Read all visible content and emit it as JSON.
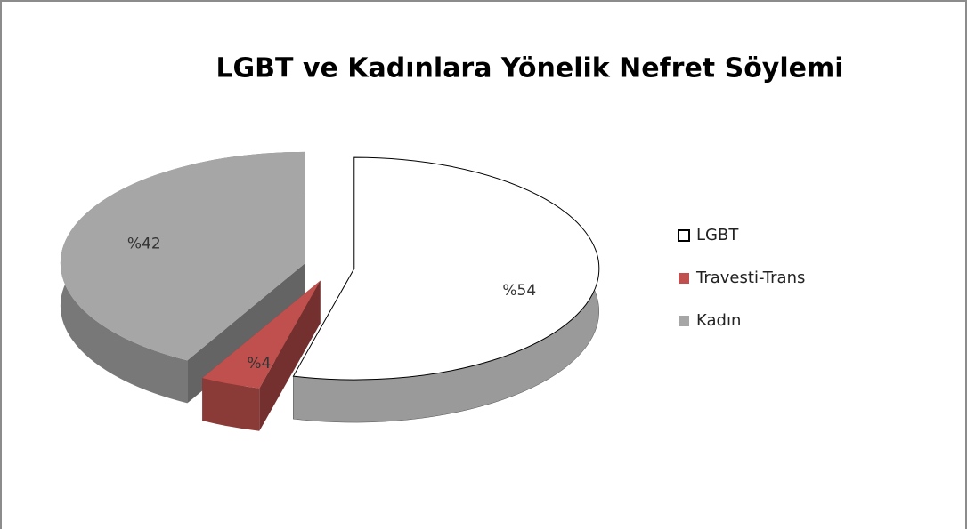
{
  "chart_data": {
    "type": "pie3d",
    "title": "LGBT ve Kadınlara Yönelik Nefret Söylemi",
    "categories": [
      "LGBT",
      "Travesti-Trans",
      "Kadın"
    ],
    "values": [
      54,
      4,
      42
    ],
    "value_labels": [
      "%54",
      "%4",
      "%42"
    ],
    "colors": [
      "#ffffff",
      "#c0504d",
      "#a6a6a6"
    ],
    "legend": "right"
  }
}
